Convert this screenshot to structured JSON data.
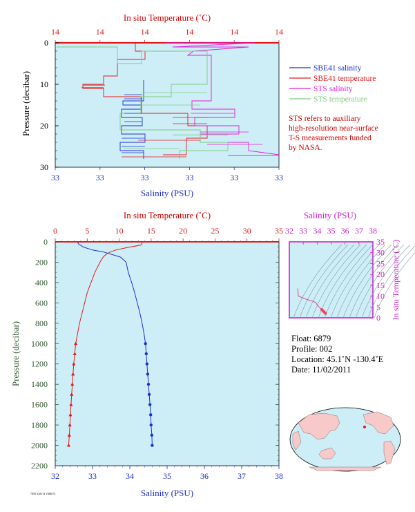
{
  "colors": {
    "plot_bg": "#cdeef7",
    "salinity": "#1a2fd0",
    "temperature": "#e21a1a",
    "sts_salinity": "#e21ad8",
    "sts_temperature": "#7ccc7c",
    "pressure_axis": "#2e5a2e",
    "magenta": "#cc22cc",
    "legend_note": "#cc0000"
  },
  "top_panel": {
    "temp_axis_label": "In situ Temperature (˚C)",
    "temp_ticks": [
      "14",
      "14",
      "14",
      "14",
      "14",
      "14"
    ],
    "sal_axis_label": "Salinity (PSU)",
    "sal_ticks": [
      "33",
      "33",
      "33",
      "33",
      "33",
      "33"
    ],
    "pressure_label": "Pressure (decibar)",
    "pressure_ticks": [
      "0",
      "10",
      "20",
      "30"
    ]
  },
  "legend": {
    "items": [
      {
        "label": "SBE41 salinity",
        "color": "#1a2fd0"
      },
      {
        "label": "SBE41 temperature",
        "color": "#e21a1a"
      },
      {
        "label": "STS salinity",
        "color": "#e21ad8"
      },
      {
        "label": "STS temperature",
        "color": "#7ccc7c"
      }
    ],
    "note": [
      "STS refers to auxiliary",
      "high-resolution near-surface",
      "T-S measurements funded",
      "by NASA."
    ]
  },
  "main_panel": {
    "temp_axis_label": "In situ Temperature (˚C)",
    "sal_axis_label": "Salinity (PSU)",
    "pressure_label": "Pressure (decibar)",
    "temp_ticks": [
      "0",
      "5",
      "10",
      "15",
      "20",
      "25",
      "30",
      "35"
    ],
    "sal_ticks": [
      "32",
      "33",
      "34",
      "35",
      "36",
      "37",
      "38"
    ],
    "pressure_ticks": [
      "0",
      "200",
      "400",
      "600",
      "800",
      "1000",
      "1200",
      "1400",
      "1600",
      "1800",
      "2000",
      "2200"
    ]
  },
  "ts_panel": {
    "sal_axis_label": "Salinity (PSU)",
    "temp_axis_label": "In situ Temperature (˚C)",
    "sal_ticks": [
      "32",
      "33",
      "34",
      "35",
      "36",
      "37",
      "38"
    ],
    "temp_ticks": [
      "0",
      "5",
      "10",
      "15",
      "20",
      "25",
      "30",
      "35"
    ]
  },
  "info": {
    "float": "Float:  6879",
    "profile": "Profile:  002",
    "location": "Location:  45.1˚N  -130.4˚E",
    "date": "Date:  11/02/2011"
  },
  "footer_tiny": "7050 3/20/13  V080/74",
  "chart_data": [
    {
      "type": "line",
      "title": "",
      "xlabel": "Salinity (PSU)",
      "x2label": "In situ Temperature (˚C)",
      "ylabel": "Pressure (decibar)",
      "y_inverted": true,
      "ylim": [
        0,
        2200
      ],
      "xlim_salinity": [
        32,
        38
      ],
      "xlim_temperature": [
        0,
        35
      ],
      "series": [
        {
          "name": "SBE41 salinity",
          "x_axis": "salinity",
          "pressure": [
            0,
            20,
            50,
            80,
            100,
            150,
            200,
            300,
            400,
            500,
            600,
            700,
            800,
            900,
            1000,
            1100,
            1200,
            1300,
            1400,
            1500,
            1600,
            1700,
            1800,
            1900,
            2000
          ],
          "values": [
            32.6,
            32.62,
            32.75,
            33.0,
            33.3,
            33.75,
            33.9,
            33.96,
            34.05,
            34.13,
            34.2,
            34.27,
            34.33,
            34.38,
            34.42,
            34.44,
            34.46,
            34.48,
            34.5,
            34.52,
            34.54,
            34.56,
            34.57,
            34.59,
            34.6
          ]
        },
        {
          "name": "SBE41 temperature",
          "x_axis": "temperature",
          "pressure": [
            0,
            30,
            60,
            80,
            100,
            120,
            150,
            200,
            300,
            400,
            500,
            600,
            700,
            800,
            900,
            1000,
            1100,
            1200,
            1300,
            1400,
            1500,
            1600,
            1700,
            1800,
            1900,
            2000
          ],
          "values": [
            13.6,
            13.5,
            11.0,
            9.5,
            8.6,
            8.0,
            7.5,
            7.0,
            6.2,
            5.6,
            5.0,
            4.6,
            4.2,
            3.8,
            3.5,
            3.2,
            3.05,
            2.9,
            2.78,
            2.67,
            2.57,
            2.47,
            2.38,
            2.29,
            2.2,
            2.1
          ]
        }
      ]
    },
    {
      "type": "scatter",
      "title": "",
      "xlabel": "Salinity (PSU)",
      "ylabel": "In situ Temperature (˚C)",
      "xlim": [
        32,
        38
      ],
      "ylim": [
        0,
        35
      ],
      "series": [
        {
          "name": "T-S profile",
          "salinity": [
            32.6,
            32.65,
            33.2,
            33.5,
            33.75,
            33.9,
            34.05,
            34.2,
            34.33,
            34.42,
            34.5,
            34.6
          ],
          "temperature": [
            13.6,
            10.0,
            8.6,
            8.0,
            7.5,
            7.0,
            5.6,
            4.6,
            3.8,
            3.2,
            2.7,
            2.1
          ]
        }
      ]
    }
  ]
}
